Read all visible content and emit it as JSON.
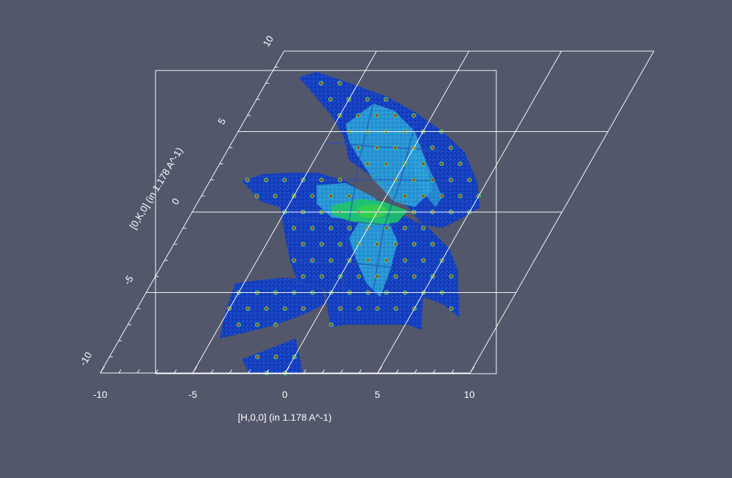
{
  "chart_data": {
    "type": "heatmap",
    "title": "",
    "xlabel": "[H,0,0] (in 1.178 A^-1)",
    "ylabel": "[0,K,0] (in 1.178 A^-1)",
    "xlim": [
      -10,
      10
    ],
    "ylim": [
      -10,
      10
    ],
    "x_ticks": [
      "-10",
      "-5",
      "0",
      "5",
      "10"
    ],
    "y_ticks": [
      "-10",
      "-5",
      "0",
      "5",
      "10"
    ],
    "colormap": [
      "#0a2fa8",
      "#1c5ed8",
      "#2aa8d8",
      "#22c46a",
      "#c62a1c"
    ],
    "background": "#52576b",
    "grid_color": "#ffffff"
  }
}
